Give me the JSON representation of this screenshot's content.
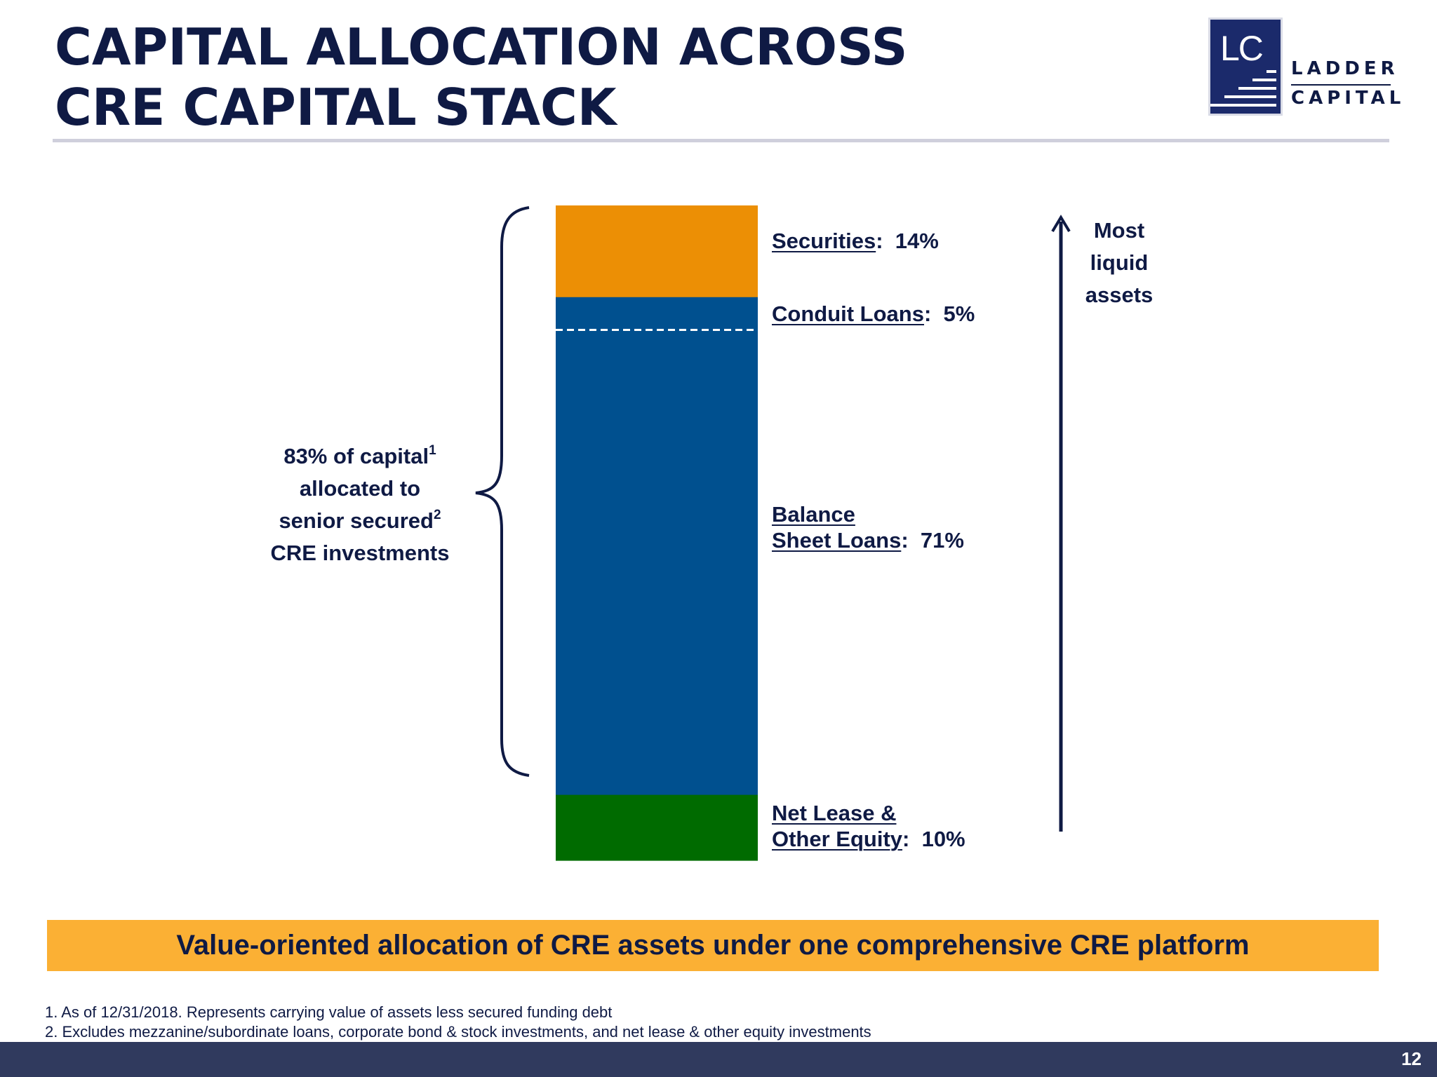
{
  "slide": {
    "title": "CAPITAL ALLOCATION ACROSS CRE CAPITAL STACK",
    "page_number": "12",
    "colors": {
      "navy": "#0f1a44",
      "securities": "#ec8f05",
      "conduit_loans": "#00508f",
      "balance_sheet_loans": "#00508f",
      "net_lease": "#006b00",
      "banner": "#fbb034",
      "footer": "#303a5e"
    }
  },
  "logo": {
    "mark": "LC",
    "line1": "LADDER",
    "line2": "CAPITAL"
  },
  "chart_data": {
    "type": "bar",
    "stacked": true,
    "unit": "%",
    "series": [
      {
        "label_line1": "Net Lease &",
        "label_line2": "Other Equity",
        "value_text": "10%",
        "value": 10
      },
      {
        "label_line1": "Balance",
        "label_line2": "Sheet Loans",
        "value_text": "71%",
        "value": 71
      },
      {
        "label_line1": "Conduit Loans",
        "label_line2": "",
        "value_text": "5%",
        "value": 5
      },
      {
        "label_line1": "Securities",
        "label_line2": "",
        "value_text": "14%",
        "value": 14
      }
    ],
    "divider_between": [
      "Conduit Loans",
      "Balance Sheet Loans"
    ],
    "arrow_label": [
      "Most",
      "liquid",
      "assets"
    ],
    "brace_annotation": {
      "line1": "83% of capital",
      "line1_sup": "1",
      "line2": "allocated to",
      "line3": "senior secured",
      "line3_sup": "2",
      "line4": "CRE investments"
    }
  },
  "banner": {
    "text": "Value-oriented allocation of CRE assets under one comprehensive CRE platform"
  },
  "footnotes": [
    "1. As of 12/31/2018. Represents carrying value of assets less secured funding debt",
    "2. Excludes mezzanine/subordinate loans, corporate bond & stock investments, and net lease & other equity investments"
  ]
}
